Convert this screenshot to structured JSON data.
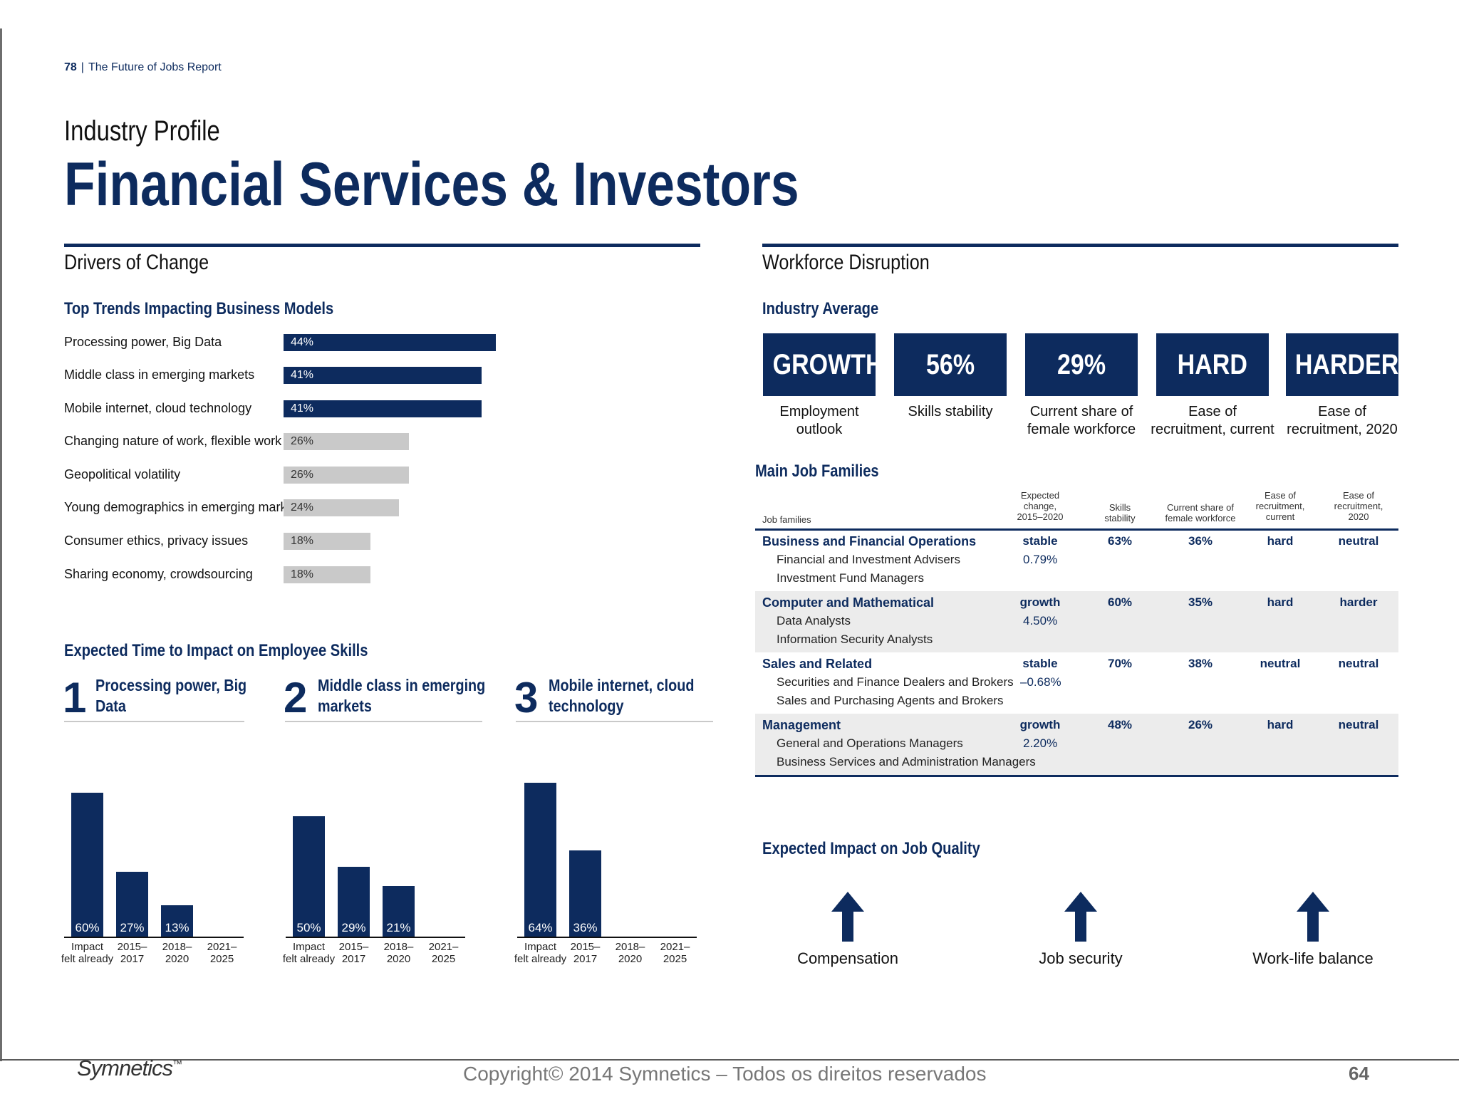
{
  "running_header": {
    "page_number": "78",
    "separator": "|",
    "report_title": "The Future of Jobs Report"
  },
  "kicker": "Industry Profile",
  "title": "Financial Services & Investors",
  "drivers": {
    "heading": "Drivers of Change",
    "trends_heading": "Top Trends Impacting Business Models",
    "trends": [
      {
        "label": "Processing power, Big Data",
        "value": 44,
        "display": "44%",
        "tone": "dark"
      },
      {
        "label": "Middle class in emerging markets",
        "value": 41,
        "display": "41%",
        "tone": "dark"
      },
      {
        "label": "Mobile internet, cloud technology",
        "value": 41,
        "display": "41%",
        "tone": "dark"
      },
      {
        "label": "Changing nature of work, flexible work",
        "value": 26,
        "display": "26%",
        "tone": "light"
      },
      {
        "label": "Geopolitical volatility",
        "value": 26,
        "display": "26%",
        "tone": "light"
      },
      {
        "label": "Young demographics in emerging markets",
        "value": 24,
        "display": "24%",
        "tone": "light"
      },
      {
        "label": "Consumer ethics, privacy issues",
        "value": 18,
        "display": "18%",
        "tone": "light"
      },
      {
        "label": "Sharing economy, crowdsourcing",
        "value": 18,
        "display": "18%",
        "tone": "light"
      }
    ],
    "skills_heading": "Expected Time to Impact on Employee Skills",
    "skills": [
      {
        "rank": "1",
        "line1": "Processing power, Big",
        "line2": "Data"
      },
      {
        "rank": "2",
        "line1": "Middle class in emerging",
        "line2": "markets"
      },
      {
        "rank": "3",
        "line1": "Mobile internet, cloud",
        "line2": "technology"
      }
    ]
  },
  "chart_data": {
    "type": "bar",
    "title": "Expected Time to Impact on Employee Skills",
    "categories": [
      "Impact felt already",
      "2015–2017",
      "2018–2020",
      "2021–2025"
    ],
    "category_lines": [
      [
        "Impact",
        "felt already"
      ],
      [
        "2015–",
        "2017"
      ],
      [
        "2018–",
        "2020"
      ],
      [
        "2021–",
        "2025"
      ]
    ],
    "ylim": [
      0,
      100
    ],
    "series": [
      {
        "name": "Processing power, Big Data",
        "values": [
          60,
          27,
          13,
          null
        ],
        "labels": [
          "60%",
          "27%",
          "13%",
          ""
        ]
      },
      {
        "name": "Middle class in emerging markets",
        "values": [
          50,
          29,
          21,
          null
        ],
        "labels": [
          "50%",
          "29%",
          "21%",
          ""
        ]
      },
      {
        "name": "Mobile internet, cloud technology",
        "values": [
          64,
          36,
          null,
          null
        ],
        "labels": [
          "64%",
          "36%",
          "",
          ""
        ]
      }
    ]
  },
  "workforce": {
    "heading": "Workforce Disruption",
    "avg_heading": "Industry Average",
    "kpis": [
      {
        "value": "GROWTH",
        "line1": "Employment",
        "line2": "outlook"
      },
      {
        "value": "56%",
        "line1": "Skills stability",
        "line2": ""
      },
      {
        "value": "29%",
        "line1": "Current share of",
        "line2": "female workforce"
      },
      {
        "value": "HARD",
        "line1": "Ease of",
        "line2": "recruitment, current"
      },
      {
        "value": "HARDER",
        "line1": "Ease of",
        "line2": "recruitment, 2020"
      }
    ],
    "families_heading": "Main Job Families",
    "columns": {
      "family": "Job families",
      "change": [
        "Expected",
        "change,",
        "2015–2020"
      ],
      "stability": [
        "Skills",
        "stability"
      ],
      "female": [
        "Current share of",
        "female workforce"
      ],
      "ease_current": [
        "Ease of",
        "recruitment,",
        "current"
      ],
      "ease_2020": [
        "Ease of",
        "recruitment,",
        "2020"
      ]
    },
    "families": [
      {
        "name": "Business and Financial Operations",
        "occupations": [
          "Financial and Investment Advisers",
          "Investment Fund Managers"
        ],
        "outlook": "stable",
        "change": "0.79%",
        "stability": "63%",
        "female": "36%",
        "ease_current": "hard",
        "ease_2020": "neutral"
      },
      {
        "name": "Computer and Mathematical",
        "occupations": [
          "Data Analysts",
          "Information Security Analysts"
        ],
        "outlook": "growth",
        "change": "4.50%",
        "stability": "60%",
        "female": "35%",
        "ease_current": "hard",
        "ease_2020": "harder"
      },
      {
        "name": "Sales and Related",
        "occupations": [
          "Securities and Finance Dealers and Brokers",
          "Sales and Purchasing Agents and Brokers"
        ],
        "outlook": "stable",
        "change": "–0.68%",
        "stability": "70%",
        "female": "38%",
        "ease_current": "neutral",
        "ease_2020": "neutral"
      },
      {
        "name": "Management",
        "occupations": [
          "General and Operations Managers",
          "Business Services and Administration Managers"
        ],
        "outlook": "growth",
        "change": "2.20%",
        "stability": "48%",
        "female": "26%",
        "ease_current": "hard",
        "ease_2020": "neutral"
      }
    ],
    "quality_heading": "Expected Impact on Job Quality",
    "quality": [
      {
        "label": "Compensation",
        "direction": "up"
      },
      {
        "label": "Job security",
        "direction": "up"
      },
      {
        "label": "Work-life balance",
        "direction": "up"
      }
    ]
  },
  "footer": {
    "logo": "Symnetics",
    "logo_mark": "™",
    "copyright": "Copyright© 2014 Symnetics – Todos os direitos reservados",
    "page": "64"
  },
  "colors": {
    "navy": "#0d2b5e",
    "light_bar": "#c9c9c9",
    "row_shade": "#ececec"
  }
}
